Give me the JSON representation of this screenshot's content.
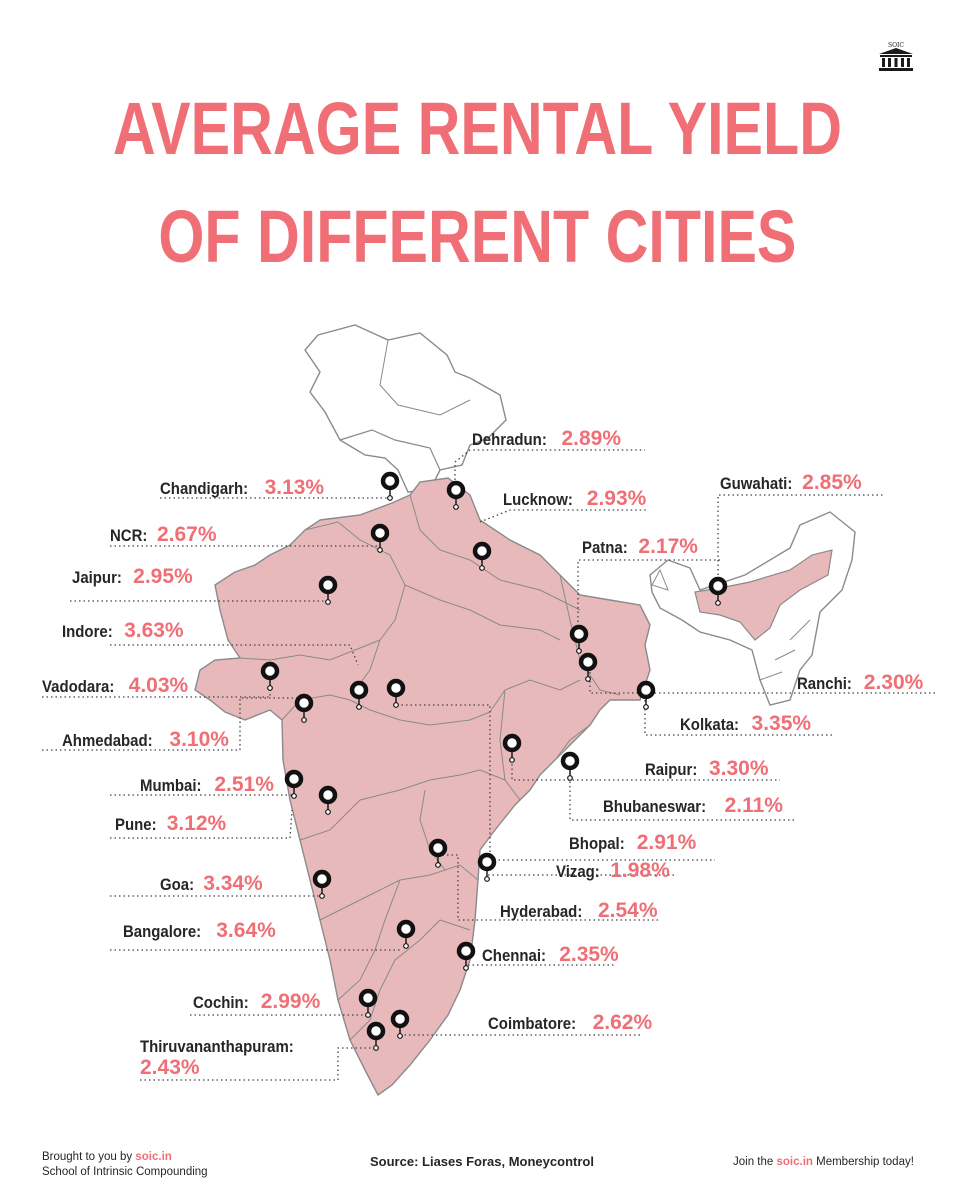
{
  "title": {
    "line1": "AVERAGE RENTAL YIELD",
    "line2": "OF DIFFERENT CITIES"
  },
  "colors": {
    "accent": "#f06f76",
    "map_fill": "#e8b9bb",
    "map_stroke": "#8a8a8a"
  },
  "logo": {
    "icon": "bank-building-icon",
    "text": "SOIC"
  },
  "cities": [
    {
      "name": "Dehradun:",
      "value": "2.89%"
    },
    {
      "name": "Chandigarh:",
      "value": "3.13%"
    },
    {
      "name": "Lucknow:",
      "value": "2.93%"
    },
    {
      "name": "Guwahati:",
      "value": "2.85%"
    },
    {
      "name": "NCR:",
      "value": "2.67%"
    },
    {
      "name": "Patna:",
      "value": "2.17%"
    },
    {
      "name": "Jaipur:",
      "value": "2.95%"
    },
    {
      "name": "Indore:",
      "value": "3.63%"
    },
    {
      "name": "Vadodara:",
      "value": "4.03%"
    },
    {
      "name": "Ranchi:",
      "value": "2.30%"
    },
    {
      "name": "Kolkata:",
      "value": "3.35%"
    },
    {
      "name": "Ahmedabad:",
      "value": "3.10%"
    },
    {
      "name": "Mumbai:",
      "value": "2.51%"
    },
    {
      "name": "Raipur:",
      "value": "3.30%"
    },
    {
      "name": "Bhubaneswar:",
      "value": "2.11%"
    },
    {
      "name": "Pune:",
      "value": "3.12%"
    },
    {
      "name": "Bhopal:",
      "value": "2.91%"
    },
    {
      "name": "Vizag:",
      "value": "1.98%"
    },
    {
      "name": "Goa:",
      "value": "3.34%"
    },
    {
      "name": "Hyderabad:",
      "value": "2.54%"
    },
    {
      "name": "Bangalore:",
      "value": "3.64%"
    },
    {
      "name": "Chennai:",
      "value": "2.35%"
    },
    {
      "name": "Cochin:",
      "value": "2.99%"
    },
    {
      "name": "Coimbatore:",
      "value": "2.62%"
    },
    {
      "name": "Thiruvananthapuram:",
      "value": "2.43%"
    }
  ],
  "footer": {
    "brought_prefix": "Brought to you by",
    "brand": "soic.in",
    "school": "School of Intrinsic Compounding",
    "source": "Source: Liases Foras, Moneycontrol",
    "join_prefix": "Join the",
    "join_suffix": "Membership today!"
  }
}
